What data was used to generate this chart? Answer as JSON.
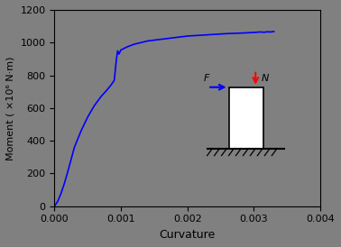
{
  "bg_color": "#808080",
  "axes_bg_color": "#808080",
  "line_color": "#0000FF",
  "xlim": [
    0,
    0.004
  ],
  "ylim": [
    0,
    1200
  ],
  "xlabel": "Curvature",
  "ylabel": "Moment ( ×10⁶ N·m)",
  "xticks": [
    0,
    0.001,
    0.002,
    0.003,
    0.004
  ],
  "yticks": [
    0,
    200,
    400,
    600,
    800,
    1000,
    1200
  ],
  "curve_x": [
    0,
    5e-05,
    0.0001,
    0.00015,
    0.0002,
    0.00025,
    0.0003,
    0.0004,
    0.0005,
    0.0006,
    0.0007,
    0.0008,
    0.00085,
    0.0009,
    0.00093,
    0.00095,
    0.00097,
    0.001,
    0.0011,
    0.0012,
    0.0013,
    0.0014,
    0.0015,
    0.0016,
    0.0018,
    0.002,
    0.0022,
    0.0024,
    0.0026,
    0.0028,
    0.003,
    0.0031,
    0.00315,
    0.0032,
    0.00325,
    0.0033
  ],
  "curve_y": [
    0,
    30,
    80,
    140,
    210,
    285,
    360,
    460,
    545,
    615,
    670,
    715,
    740,
    770,
    890,
    950,
    930,
    955,
    975,
    990,
    1000,
    1010,
    1015,
    1020,
    1030,
    1040,
    1045,
    1050,
    1055,
    1058,
    1062,
    1065,
    1063,
    1066,
    1065,
    1068
  ]
}
